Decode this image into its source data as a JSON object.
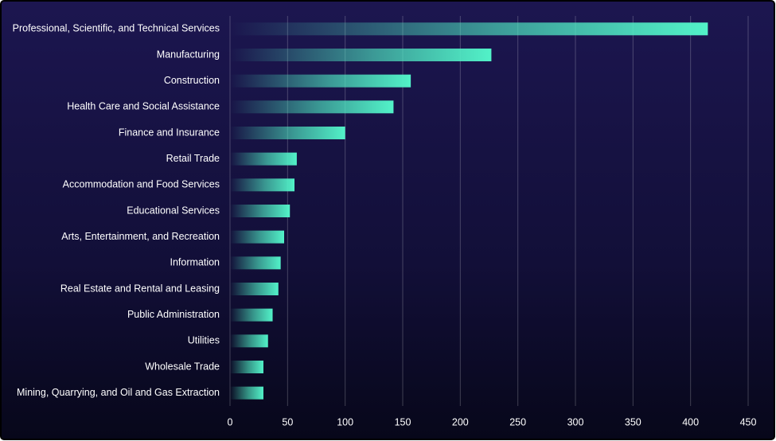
{
  "chart_data": {
    "type": "bar",
    "orientation": "horizontal",
    "categories": [
      "Professional, Scientific, and Technical Services",
      "Manufacturing",
      "Construction",
      "Health Care and Social Assistance",
      "Finance and Insurance",
      "Retail Trade",
      "Accommodation and Food Services",
      "Educational Services",
      "Arts, Entertainment, and Recreation",
      "Information",
      "Real Estate and Rental and Leasing",
      "Public Administration",
      "Utilities",
      "Wholesale Trade",
      "Mining, Quarrying, and Oil and Gas Extraction"
    ],
    "values": [
      415,
      227,
      157,
      142,
      100,
      58,
      56,
      52,
      47,
      44,
      42,
      37,
      33,
      29,
      29
    ],
    "color": "#52f2c8",
    "xlim": [
      0,
      450
    ],
    "xticks": [
      0,
      50,
      100,
      150,
      200,
      250,
      300,
      350,
      400,
      450
    ],
    "grid": true
  }
}
